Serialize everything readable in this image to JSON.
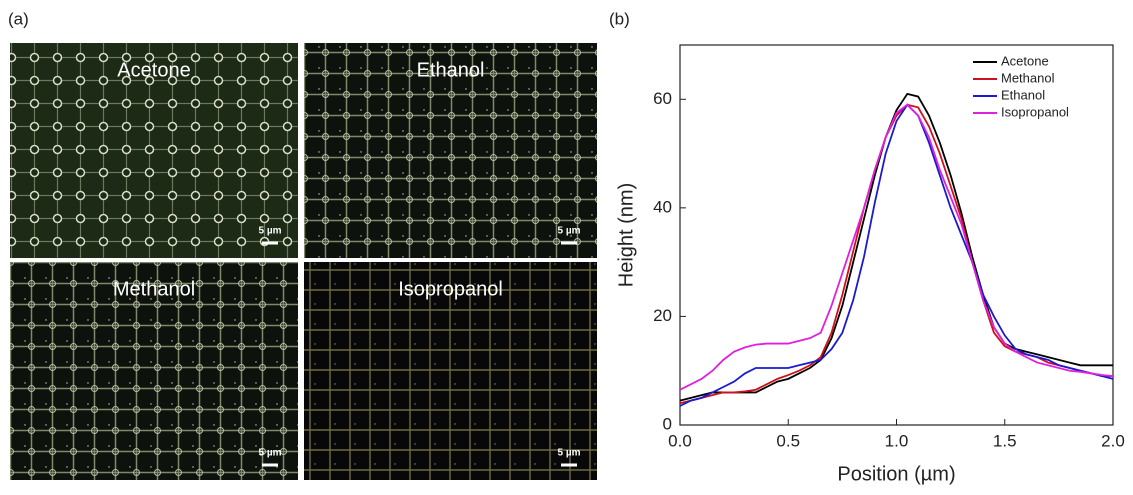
{
  "panel_a": {
    "label": "(a)",
    "images": [
      {
        "label": "Acetone",
        "scale_bar": "5 µm"
      },
      {
        "label": "Ethanol",
        "scale_bar": "5 µm"
      },
      {
        "label": "Methanol",
        "scale_bar": "5 µm"
      },
      {
        "label": "Isopropanol",
        "scale_bar": "5 µm"
      }
    ]
  },
  "chart_data": {
    "type": "line",
    "label": "(b)",
    "x_label": "Position (µm)",
    "y_label": "Height (nm)",
    "x": [
      0,
      0.05,
      0.1,
      0.15,
      0.2,
      0.25,
      0.3,
      0.35,
      0.4,
      0.45,
      0.5,
      0.55,
      0.6,
      0.65,
      0.7,
      0.75,
      0.8,
      0.85,
      0.9,
      0.95,
      1.0,
      1.05,
      1.1,
      1.15,
      1.2,
      1.25,
      1.3,
      1.35,
      1.4,
      1.45,
      1.5,
      1.55,
      1.6,
      1.65,
      1.7,
      1.75,
      1.8,
      1.85,
      1.9,
      1.95,
      2.0
    ],
    "series": [
      {
        "name": "Acetone",
        "color": "#000000",
        "values": [
          4.5,
          5,
          5.5,
          6,
          6,
          6,
          6,
          6,
          7,
          8,
          8.5,
          9.5,
          10.5,
          12,
          16,
          22,
          30,
          38,
          46,
          53,
          58,
          61,
          60.5,
          57,
          52,
          46,
          39,
          31,
          24,
          18,
          15,
          14,
          13.5,
          13,
          12.5,
          12,
          11.5,
          11,
          11,
          11,
          11
        ]
      },
      {
        "name": "Methanol",
        "color": "#d0101a",
        "values": [
          4,
          4.5,
          5,
          5.5,
          6,
          6,
          6.2,
          6.5,
          7.5,
          8.5,
          9.2,
          10,
          11,
          12.5,
          17,
          24,
          32,
          40,
          47,
          53,
          57,
          59,
          58.5,
          55,
          50,
          44,
          38,
          30,
          23,
          17,
          14.5,
          13.5,
          13,
          12.5,
          11.5,
          11,
          10.5,
          10,
          9.5,
          9,
          9
        ]
      },
      {
        "name": "Ethanol",
        "color": "#1a1ad0",
        "values": [
          3.5,
          4.5,
          5,
          6,
          7,
          8,
          9.5,
          10.5,
          10.5,
          10.5,
          10.5,
          11,
          11.5,
          12,
          14,
          17,
          23,
          31,
          41,
          50,
          56,
          59,
          57,
          52,
          46,
          40,
          35,
          30,
          24,
          20,
          16.5,
          14,
          13,
          12.5,
          12,
          11,
          10.5,
          10,
          9.5,
          9,
          8.5
        ]
      },
      {
        "name": "Isopropanol",
        "color": "#e020e0",
        "values": [
          6.5,
          7.5,
          8.5,
          10,
          12,
          13.5,
          14.3,
          14.8,
          15,
          15,
          15,
          15.5,
          16,
          17,
          22,
          28,
          34,
          40,
          47,
          53,
          57.5,
          59,
          57,
          53,
          47,
          42,
          37,
          30,
          23,
          18,
          15,
          13.5,
          12.5,
          11.5,
          11,
          10.5,
          10,
          9.8,
          9.5,
          9.2,
          9
        ]
      }
    ],
    "xlim": [
      0,
      2.0
    ],
    "ylim": [
      0,
      70
    ],
    "xticks": [
      {
        "value": 0,
        "label": "0.0"
      },
      {
        "value": 0.5,
        "label": "0.5"
      },
      {
        "value": 1.0,
        "label": "1.0"
      },
      {
        "value": 1.5,
        "label": "1.5"
      },
      {
        "value": 2.0,
        "label": "2.0"
      }
    ],
    "yticks": [
      0,
      20,
      40,
      60
    ],
    "legend": "top-right"
  }
}
